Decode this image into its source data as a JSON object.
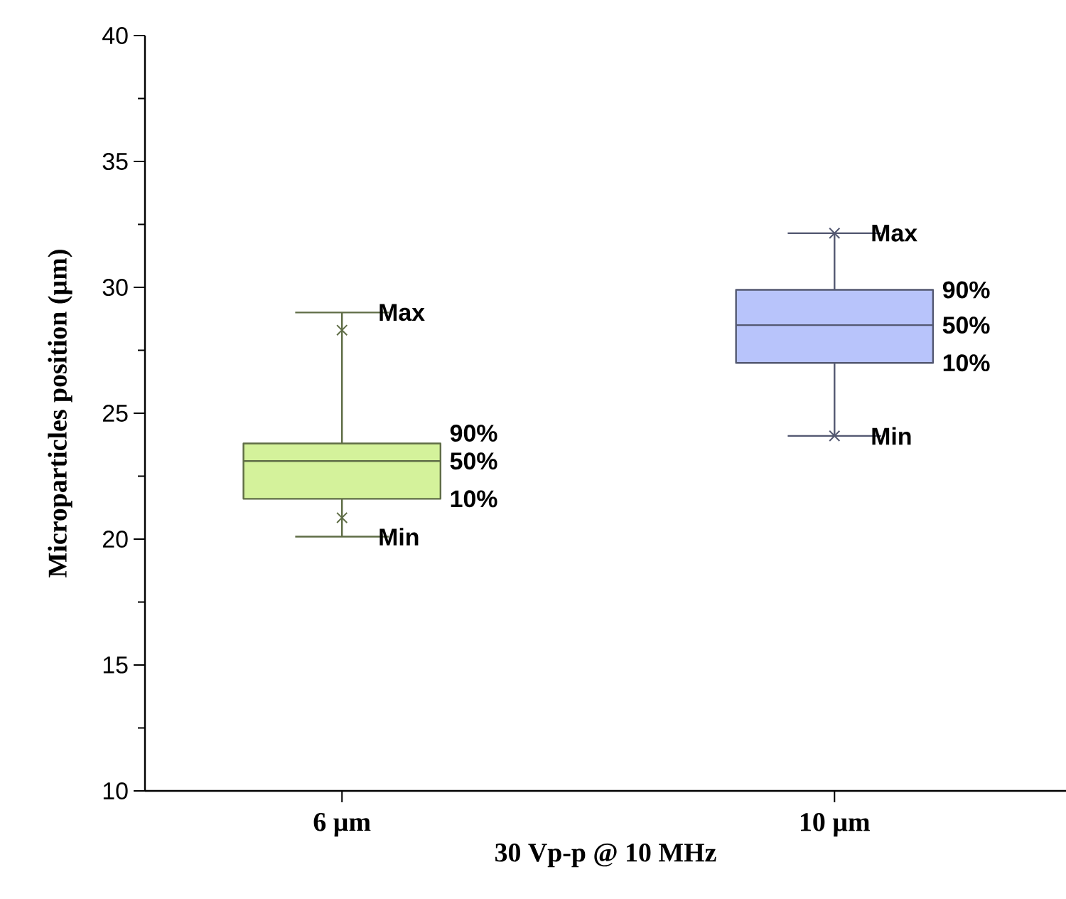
{
  "chart_data": {
    "type": "box",
    "xlabel": "30 Vp-p @ 10 MHz",
    "ylabel": "Microparticles position (µm)",
    "categories": [
      "6 µm",
      "10 µm"
    ],
    "colors": [
      "#d4f29b",
      "#b8c4fb"
    ],
    "boxes": [
      {
        "low": 20.1,
        "q1": 21.6,
        "median": 23.1,
        "q3": 23.8,
        "high": 29.0,
        "outliers": [
          28.3,
          20.85
        ]
      },
      {
        "low": 24.1,
        "q1": 27.0,
        "median": 28.5,
        "q3": 29.9,
        "high": 32.15,
        "outliers": [
          32.15,
          24.1
        ]
      }
    ],
    "ylim": [
      10,
      40
    ],
    "yticks": [
      10,
      15,
      20,
      25,
      30,
      35,
      40
    ],
    "marker": "cross",
    "annotations": [
      "Max",
      "90%",
      "50%",
      "10%",
      "Min",
      "Max",
      "90%",
      "50%",
      "10%",
      "Min"
    ]
  }
}
